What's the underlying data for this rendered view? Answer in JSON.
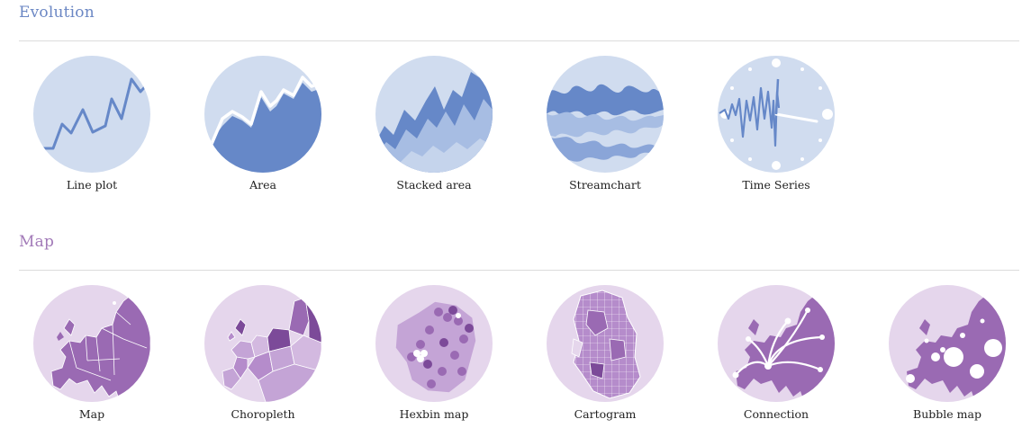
{
  "sections": [
    {
      "title": "Evolution",
      "items": [
        {
          "label": "Line plot",
          "icon": "line-plot-icon"
        },
        {
          "label": "Area",
          "icon": "area-chart-icon"
        },
        {
          "label": "Stacked area",
          "icon": "stacked-area-icon"
        },
        {
          "label": "Streamchart",
          "icon": "streamchart-icon"
        },
        {
          "label": "Time Series",
          "icon": "time-series-icon"
        }
      ]
    },
    {
      "title": "Map",
      "items": [
        {
          "label": "Map",
          "icon": "map-icon"
        },
        {
          "label": "Choropleth",
          "icon": "choropleth-icon"
        },
        {
          "label": "Hexbin map",
          "icon": "hexbin-map-icon"
        },
        {
          "label": "Cartogram",
          "icon": "cartogram-icon"
        },
        {
          "label": "Connection",
          "icon": "connection-map-icon"
        },
        {
          "label": "Bubble map",
          "icon": "bubble-map-icon"
        }
      ]
    }
  ],
  "colors": {
    "evolution_light": "#d0dcef",
    "evolution_mid": "#a7bde3",
    "evolution_dark": "#6688c8",
    "map_light": "#e5d6ec",
    "map_mid": "#c4a4d6",
    "map_dark": "#9a6ab3",
    "map_darkest": "#7c4a99"
  }
}
